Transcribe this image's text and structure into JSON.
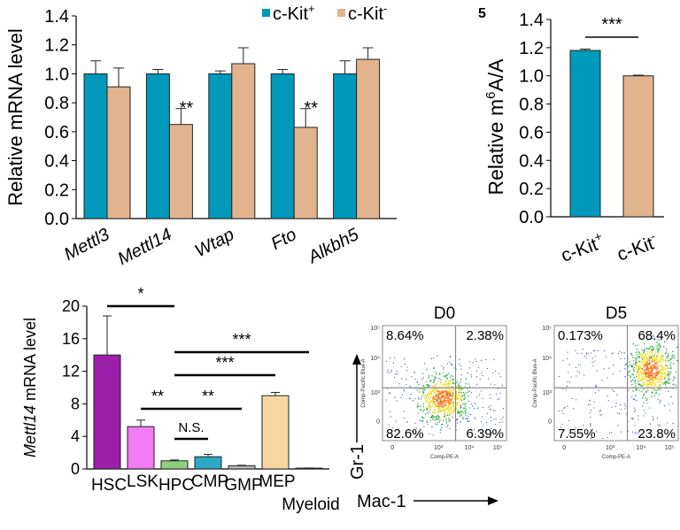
{
  "chart_data": [
    {
      "type": "bar",
      "ylabel": "Relative mRNA level",
      "ylim": [
        0,
        1.4
      ],
      "yticks": [
        "0.0",
        "0.2",
        "0.4",
        "0.6",
        "0.8",
        "1.0",
        "1.2",
        "1.4"
      ],
      "categories": [
        "Mettl3",
        "Mettl14",
        "Wtap",
        "Fto",
        "Alkbh5"
      ],
      "series": [
        {
          "name": "c-Kit+",
          "color": "#0099bb",
          "values": [
            1.0,
            1.0,
            1.0,
            1.0,
            1.0
          ],
          "errors": [
            0.09,
            0.03,
            0.02,
            0.03,
            0.09
          ]
        },
        {
          "name": "c-Kit-",
          "color": "#e2b48e",
          "values": [
            0.91,
            0.65,
            1.07,
            0.63,
            1.1
          ],
          "errors": [
            0.13,
            0.11,
            0.11,
            0.13,
            0.08
          ]
        }
      ],
      "legend": [
        {
          "base": "c-Kit",
          "sup": "+"
        },
        {
          "base": "c-Kit",
          "sup": "-"
        }
      ],
      "legend_position": "top-right",
      "annotations": [
        {
          "category": "Mettl14",
          "text": "**"
        },
        {
          "category": "Fto",
          "text": "**"
        }
      ]
    },
    {
      "type": "bar",
      "panel_letter": "5",
      "ylabel": {
        "base": "Relative m",
        "sup": "6",
        "rest": "A/A"
      },
      "ylim": [
        0,
        1.4
      ],
      "yticks": [
        "0.0",
        "0.2",
        "0.4",
        "0.6",
        "0.8",
        "1.0",
        "1.2",
        "1.4"
      ],
      "categories": [
        {
          "base": "c-Kit",
          "sup": "+"
        },
        {
          "base": "c-Kit",
          "sup": "-"
        }
      ],
      "values": [
        1.18,
        1.0
      ],
      "errors": [
        0.01,
        0.005
      ],
      "colors": [
        "#0099bb",
        "#e2b48e"
      ],
      "significance": "***"
    },
    {
      "type": "bar",
      "ylabel": {
        "italic": "Mettl14",
        "rest": " mRNA level"
      },
      "ylim": [
        0,
        20
      ],
      "yticks": [
        "0",
        "4",
        "8",
        "12",
        "16",
        "20"
      ],
      "categories": [
        "HSC",
        "LSK",
        "HPC",
        "CMP",
        "GMP",
        "MEP",
        "Myeloid"
      ],
      "values": [
        14.0,
        5.2,
        1.0,
        1.5,
        0.4,
        9.0,
        0.1
      ],
      "errors": [
        4.8,
        0.8,
        0.1,
        0.3,
        0.05,
        0.4,
        0.02
      ],
      "colors": [
        "#9b1fa8",
        "#f27cf5",
        "#8ecf7e",
        "#2ea8c4",
        "#b7b7b7",
        "#f7d7a0",
        "#555555"
      ],
      "significance": [
        {
          "from": "HSC",
          "to": "HPC",
          "text": "*"
        },
        {
          "from": "LSK",
          "to": "HPC",
          "text": "**"
        },
        {
          "from": "HPC",
          "to": "CMP",
          "text": "N.S."
        },
        {
          "from": "HPC",
          "to": "GMP",
          "text": "**"
        },
        {
          "from": "HPC",
          "to": "MEP",
          "text": "***"
        },
        {
          "from": "HPC",
          "to": "Myeloid",
          "text": "***"
        }
      ]
    },
    {
      "type": "scatter",
      "subtype": "flow-cytometry",
      "xlabel": "Mac-1",
      "ylabel": "Gr-1",
      "plots": [
        {
          "title": "D0",
          "quadrants": {
            "top_left": "8.64%",
            "top_right": "2.38%",
            "bottom_left": "82.6%",
            "bottom_right": "6.39%"
          },
          "axis_x": "Comp-PE-A",
          "axis_y": "Comp-Pacific Blue-A"
        },
        {
          "title": "D5",
          "quadrants": {
            "top_left": "0.173%",
            "top_right": "68.4%",
            "bottom_left": "7.55%",
            "bottom_right": "23.8%"
          },
          "axis_x": "Comp-PE-A",
          "axis_y": "Comp-Pacific Blue-A"
        }
      ],
      "ytick_labels": [
        "10⁵",
        "10⁴",
        "10³",
        "0"
      ],
      "xtick_labels": [
        "0",
        "10³",
        "10⁴",
        "10⁵"
      ]
    }
  ]
}
